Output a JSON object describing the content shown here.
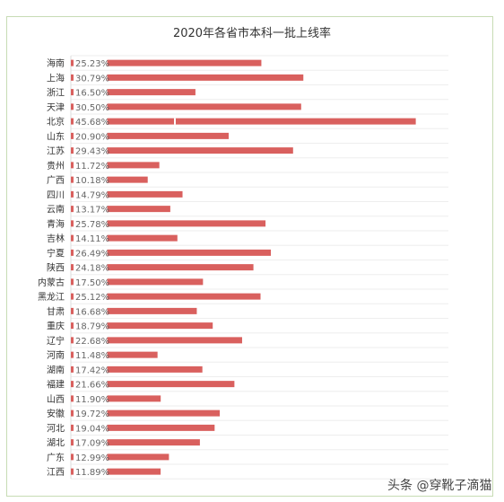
{
  "chart_data": {
    "type": "bar",
    "orientation": "horizontal",
    "title": "2020年各省市本科一批上线率",
    "xlabel": "",
    "ylabel": "",
    "xlim": [
      0,
      50
    ],
    "grid": true,
    "legend": "none",
    "bar_color": "#d9605e",
    "categories": [
      "海南",
      "上海",
      "浙江",
      "天津",
      "北京",
      "山东",
      "江苏",
      "贵州",
      "广西",
      "四川",
      "云南",
      "青海",
      "吉林",
      "宁夏",
      "陕西",
      "内蒙古",
      "黑龙江",
      "甘肃",
      "重庆",
      "辽宁",
      "河南",
      "湖南",
      "福建",
      "山西",
      "安徽",
      "河北",
      "湖北",
      "广东",
      "江西"
    ],
    "values": [
      25.23,
      30.79,
      16.5,
      30.5,
      45.68,
      20.9,
      29.43,
      11.72,
      10.18,
      14.79,
      13.17,
      25.78,
      14.11,
      26.49,
      24.18,
      17.5,
      25.12,
      16.68,
      18.79,
      22.68,
      11.48,
      17.42,
      21.66,
      11.9,
      19.72,
      19.04,
      17.09,
      12.99,
      11.89
    ],
    "value_labels": [
      "25.23%",
      "30.79%",
      "16.50%",
      "30.50%",
      "45.68%",
      "20.90%",
      "29.43%",
      "11.72%",
      "10.18%",
      "14.79%",
      "13.17%",
      "25.78%",
      "14.11%",
      "26.49%",
      "24.18%",
      "17.50%",
      "25.12%",
      "16.68%",
      "18.79%",
      "22.68%",
      "11.48%",
      "17.42%",
      "21.66%",
      "11.90%",
      "19.72%",
      "19.04%",
      "17.09%",
      "12.99%",
      "11.89%"
    ]
  },
  "watermark": "头条 @穿靴子滴猫"
}
